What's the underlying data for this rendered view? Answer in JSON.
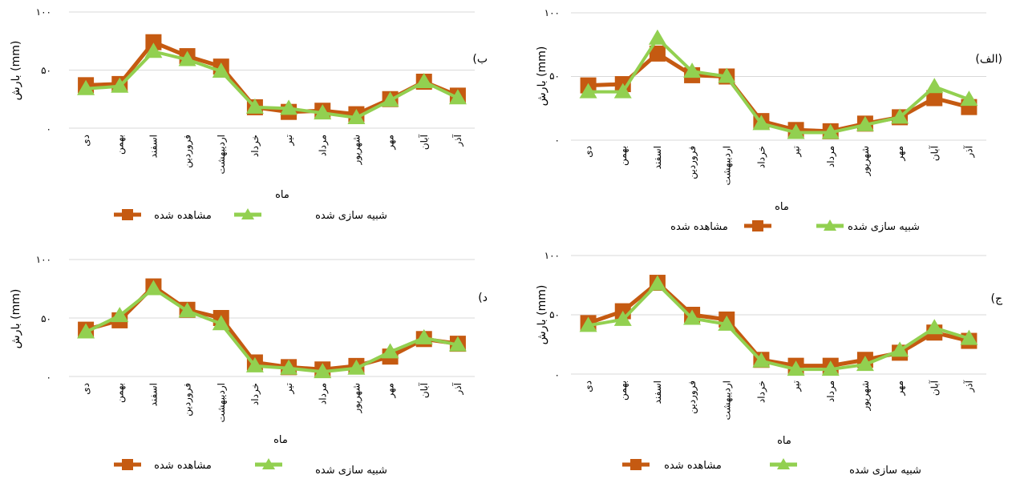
{
  "figure": {
    "legend_observed": "مشاهده شده",
    "legend_simulated": "شبیه سازی شده",
    "colors": {
      "observed": "#C55A11",
      "simulated": "#92D050",
      "grid": "#D9D9D9"
    }
  },
  "chart_data": [
    {
      "type": "line",
      "panel_label": "(الف)",
      "ylabel": "بارش (mm)",
      "xlabel": "ماه",
      "yticks": [
        "۰",
        "۵۰",
        "۱۰۰"
      ],
      "ylim": [
        0,
        100
      ],
      "categories": [
        "دی",
        "بهمن",
        "اسفند",
        "فروردین",
        "اردیبهشت",
        "خرداد",
        "تیر",
        "مرداد",
        "شهریور",
        "مهر",
        "آبان",
        "آذر"
      ],
      "series": [
        {
          "name": "مشاهده شده",
          "values": [
            43,
            44,
            68,
            51,
            50,
            15,
            8,
            7,
            13,
            18,
            33,
            26
          ]
        },
        {
          "name": "شبیه سازی شده",
          "values": [
            38,
            38,
            80,
            54,
            50,
            13,
            6,
            6,
            12,
            18,
            42,
            32
          ]
        }
      ],
      "grid": true,
      "legend_position": "bottom"
    },
    {
      "type": "line",
      "panel_label": "(ب",
      "ylabel": "بارش (mm)",
      "xlabel": "ماه",
      "yticks": [
        "۰",
        "۵۰",
        "۱۰۰"
      ],
      "ylim": [
        0,
        100
      ],
      "categories": [
        "دی",
        "بهمن",
        "اسفند",
        "فروردین",
        "اردیبهشت",
        "خرداد",
        "تیر",
        "مرداد",
        "شهریور",
        "مهر",
        "آبان",
        "آذر"
      ],
      "series": [
        {
          "name": "مشاهده شده",
          "values": [
            37,
            38,
            74,
            62,
            53,
            18,
            14,
            15,
            12,
            25,
            40,
            28
          ]
        },
        {
          "name": "شبیه سازی شده",
          "values": [
            34,
            36,
            66,
            59,
            49,
            18,
            17,
            13,
            9,
            24,
            40,
            26
          ]
        }
      ],
      "grid": true,
      "legend_position": "bottom"
    },
    {
      "type": "line",
      "panel_label": "(ج",
      "ylabel": "بارش (mm)",
      "xlabel": "ماه",
      "yticks": [
        "۰",
        "۵۰",
        "۱۰۰"
      ],
      "ylim": [
        0,
        100
      ],
      "categories": [
        "دی",
        "بهمن",
        "اسفند",
        "فروردین",
        "اردیبهشت",
        "خرداد",
        "تیر",
        "مرداد",
        "شهریور",
        "مهر",
        "آبان",
        "آذر"
      ],
      "series": [
        {
          "name": "مشاهده شده",
          "values": [
            43,
            53,
            77,
            50,
            46,
            12,
            7,
            7,
            12,
            18,
            35,
            28
          ]
        },
        {
          "name": "شبیه سازی شده",
          "values": [
            41,
            46,
            76,
            47,
            42,
            11,
            4,
            4,
            8,
            20,
            39,
            30
          ]
        }
      ],
      "grid": true,
      "legend_position": "bottom"
    },
    {
      "type": "line",
      "panel_label": "(د",
      "ylabel": "بارش (mm)",
      "xlabel": "ماه",
      "yticks": [
        "۰",
        "۵۰",
        "۱۰۰"
      ],
      "ylim": [
        0,
        100
      ],
      "categories": [
        "دی",
        "بهمن",
        "اسفند",
        "فروردین",
        "اردیبهشت",
        "خرداد",
        "تیر",
        "مرداد",
        "شهریور",
        "مهر",
        "آبان",
        "آذر"
      ],
      "series": [
        {
          "name": "مشاهده شده",
          "values": [
            40,
            48,
            77,
            57,
            50,
            12,
            8,
            6,
            9,
            17,
            32,
            28
          ]
        },
        {
          "name": "شبیه سازی شده",
          "values": [
            38,
            52,
            75,
            56,
            45,
            9,
            7,
            4,
            7,
            21,
            33,
            27
          ]
        }
      ],
      "grid": true,
      "legend_position": "bottom"
    }
  ]
}
